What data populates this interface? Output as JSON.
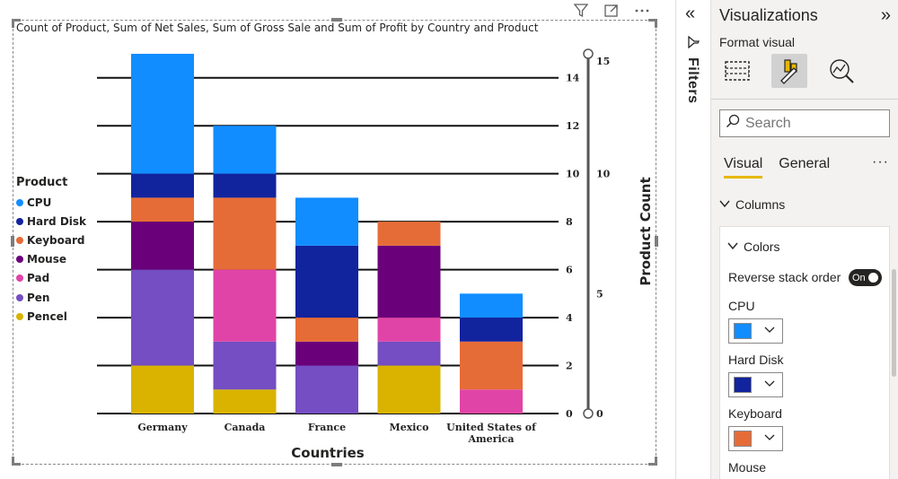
{
  "chart_data": {
    "type": "bar",
    "title": "Count of Product, Sum of Net Sales, Sum of Gross Sale and Sum of Profit by Country and Product",
    "xlabel": "Countries",
    "ylabel": "",
    "secondary_ylabel": "Product Count",
    "categories": [
      "Germany",
      "Canada",
      "France",
      "Mexico",
      "United States of America"
    ],
    "ylim": [
      0,
      15
    ],
    "yticks": [
      0,
      2,
      4,
      6,
      8,
      10,
      12,
      14
    ],
    "secondary_ylim": [
      0,
      15
    ],
    "secondary_yticks": [
      0,
      5,
      10,
      15
    ],
    "legend_title": "Product",
    "legend_position": "left",
    "grid": true,
    "stacked": true,
    "series": [
      {
        "name": "Pencel",
        "color": "#D9B300",
        "values": [
          2,
          1,
          0,
          2,
          0
        ]
      },
      {
        "name": "Pen",
        "color": "#744EC2",
        "values": [
          4,
          2,
          2,
          1,
          0
        ]
      },
      {
        "name": "Pad",
        "color": "#E044A7",
        "values": [
          0,
          3,
          0,
          1,
          1
        ]
      },
      {
        "name": "Mouse",
        "color": "#6B007B",
        "values": [
          2,
          0,
          1,
          3,
          0
        ]
      },
      {
        "name": "Keyboard",
        "color": "#E66C37",
        "values": [
          1,
          3,
          1,
          1,
          2
        ]
      },
      {
        "name": "Hard Disk",
        "color": "#12239E",
        "values": [
          1,
          1,
          3,
          0,
          1
        ]
      },
      {
        "name": "CPU",
        "color": "#118DFF",
        "values": [
          5,
          2,
          2,
          0,
          1
        ]
      }
    ]
  },
  "legend_order": [
    "CPU",
    "Hard Disk",
    "Keyboard",
    "Mouse",
    "Pad",
    "Pen",
    "Pencel"
  ],
  "visual_header": {
    "icons": [
      "filter-icon",
      "focus-mode-icon",
      "more-options-icon"
    ]
  },
  "filters": {
    "label": "Filters"
  },
  "viz_pane": {
    "title": "Visualizations",
    "subtitle": "Format visual",
    "search_placeholder": "Search",
    "tabs": [
      "Visual",
      "General"
    ],
    "active_tab": "Visual",
    "section": "Columns",
    "card_section": "Colors",
    "reverse_label": "Reverse stack order",
    "toggle_label": "On",
    "color_rows": [
      {
        "label": "CPU",
        "color": "#118DFF"
      },
      {
        "label": "Hard Disk",
        "color": "#12239E"
      },
      {
        "label": "Keyboard",
        "color": "#E66C37"
      },
      {
        "label": "Mouse",
        "color": "#6B007B"
      }
    ]
  }
}
